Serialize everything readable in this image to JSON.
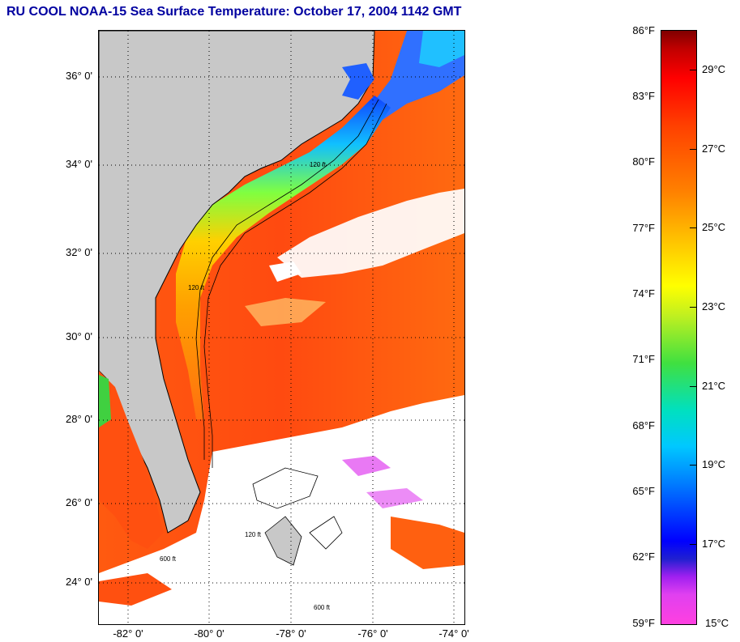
{
  "title": "RU COOL  NOAA-15  Sea Surface Temperature:  October 17, 2004 1142 GMT",
  "map": {
    "lat_labels": [
      "36° 0'",
      "34° 0'",
      "32° 0'",
      "30° 0'",
      "28° 0'",
      "26° 0'",
      "24° 0'"
    ],
    "lon_labels": [
      "-82° 0'",
      "-80° 0'",
      "-78° 0'",
      "-76° 0'",
      "-74° 0'"
    ],
    "contour_labels": [
      "120 ft",
      "120 ft",
      "120 ft",
      "600 ft",
      "600 ft"
    ],
    "colors": {
      "land": "#c8c8c8",
      "cloud": "#ffffff",
      "warm": "#ff4a10",
      "cool": "#20a0ff"
    }
  },
  "colorbar": {
    "fahrenheit": [
      "86°F",
      "83°F",
      "80°F",
      "77°F",
      "74°F",
      "71°F",
      "68°F",
      "65°F",
      "62°F",
      "59°F"
    ],
    "celsius": [
      "29°C",
      "27°C",
      "25°C",
      "23°C",
      "21°C",
      "19°C",
      "17°C",
      "15°C"
    ]
  }
}
